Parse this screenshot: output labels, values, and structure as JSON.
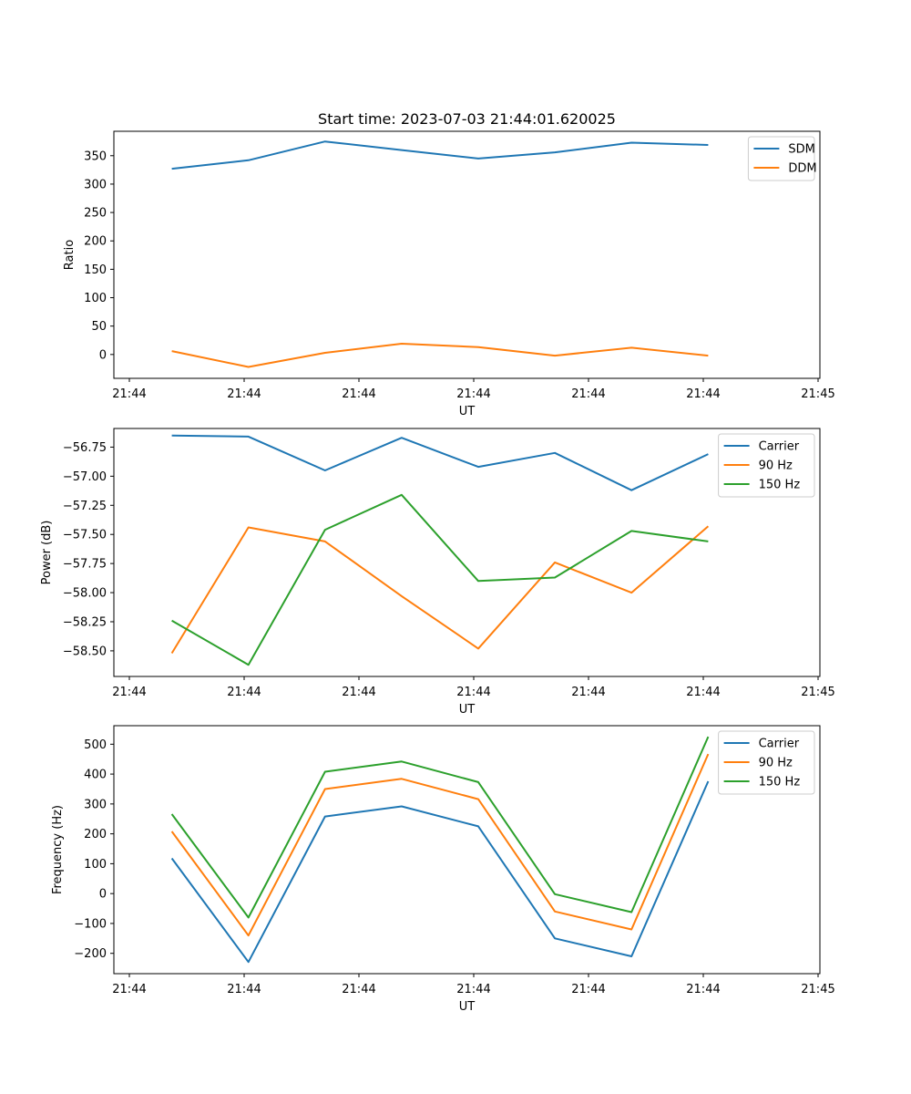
{
  "figure_title": "Start time: 2023-07-03 21:44:01.620025",
  "chart_data": [
    {
      "type": "line",
      "title": "Start time: 2023-07-03 21:44:01.620025",
      "xlabel": "UT",
      "ylabel": "Ratio",
      "x_tick_labels": [
        "21:44",
        "21:44",
        "21:44",
        "21:44",
        "21:44",
        "21:44",
        "21:44"
      ],
      "x_ticks": [
        0,
        1,
        2,
        3,
        4,
        5,
        6,
        7,
        8,
        9,
        10,
        11,
        12
      ],
      "x_tick_values": [
        "21:44",
        "21:44",
        "21:44",
        "21:44",
        "21:44",
        "21:44",
        "21:45"
      ],
      "xlim": [
        -0.27,
        11.8
      ],
      "x": [
        0.72,
        2.03,
        3.34,
        4.65,
        5.96,
        7.27,
        8.58,
        9.89
      ],
      "ylim": [
        -42,
        393
      ],
      "y_ticks": [
        0,
        50,
        100,
        150,
        200,
        250,
        300,
        350
      ],
      "legend": "top-right",
      "series": [
        {
          "name": "SDM",
          "color": "#1f77b4",
          "values": [
            327,
            342,
            375,
            360,
            345,
            356,
            373,
            369
          ]
        },
        {
          "name": "DDM",
          "color": "#ff7f0e",
          "values": [
            6,
            -22,
            3,
            19,
            13,
            -2,
            12,
            -2
          ]
        }
      ]
    },
    {
      "type": "line",
      "title": "",
      "xlabel": "UT",
      "ylabel": "Power (dB)",
      "x_tick_values": [
        "21:44",
        "21:44",
        "21:44",
        "21:44",
        "21:44",
        "21:44",
        "21:45"
      ],
      "xlim": [
        -0.27,
        11.8
      ],
      "x": [
        0.72,
        2.03,
        3.34,
        4.65,
        5.96,
        7.27,
        8.58,
        9.89
      ],
      "ylim": [
        -58.72,
        -56.59
      ],
      "y_ticks": [
        -58.5,
        -58.25,
        -58.0,
        -57.75,
        -57.5,
        -57.25,
        -57.0,
        -56.75
      ],
      "y_tick_labels": [
        "−58.50",
        "−58.25",
        "−58.00",
        "−57.75",
        "−57.50",
        "−57.25",
        "−57.00",
        "−56.75"
      ],
      "legend": "top-right",
      "series": [
        {
          "name": "Carrier",
          "color": "#1f77b4",
          "values": [
            -56.65,
            -56.66,
            -56.95,
            -56.67,
            -56.92,
            -56.8,
            -57.12,
            -56.81
          ]
        },
        {
          "name": "90 Hz",
          "color": "#ff7f0e",
          "values": [
            -58.52,
            -57.44,
            -57.56,
            -58.03,
            -58.48,
            -57.74,
            -58.0,
            -57.43
          ]
        },
        {
          "name": "150 Hz",
          "color": "#2ca02c",
          "values": [
            -58.24,
            -58.62,
            -57.46,
            -57.16,
            -57.9,
            -57.87,
            -57.47,
            -57.56
          ]
        }
      ]
    },
    {
      "type": "line",
      "title": "",
      "xlabel": "UT",
      "ylabel": "Frequency (Hz)",
      "x_tick_values": [
        "21:44",
        "21:44",
        "21:44",
        "21:44",
        "21:44",
        "21:44",
        "21:45"
      ],
      "xlim": [
        -0.27,
        11.8
      ],
      "x": [
        0.72,
        2.03,
        3.34,
        4.65,
        5.96,
        7.27,
        8.58,
        9.89
      ],
      "ylim": [
        -268,
        562
      ],
      "y_ticks": [
        -200,
        -100,
        0,
        100,
        200,
        300,
        400,
        500
      ],
      "y_tick_labels": [
        "−200",
        "−100",
        "0",
        "100",
        "200",
        "300",
        "400",
        "500"
      ],
      "legend": "top-right",
      "series": [
        {
          "name": "Carrier",
          "color": "#1f77b4",
          "values": [
            118,
            -229,
            258,
            292,
            225,
            -150,
            -210,
            376
          ]
        },
        {
          "name": "90 Hz",
          "color": "#ff7f0e",
          "values": [
            208,
            -140,
            350,
            384,
            316,
            -60,
            -120,
            467
          ]
        },
        {
          "name": "150 Hz",
          "color": "#2ca02c",
          "values": [
            266,
            -80,
            408,
            442,
            373,
            -2,
            -62,
            525
          ]
        }
      ]
    }
  ]
}
